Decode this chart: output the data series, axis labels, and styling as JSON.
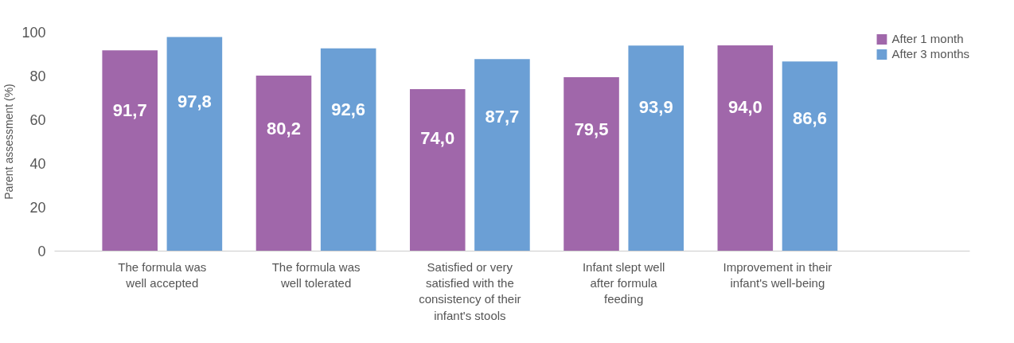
{
  "chart_data": {
    "type": "bar",
    "ylabel": "Parent assessment (%)",
    "categories": [
      "The formula was\nwell accepted",
      "The formula was\nwell tolerated",
      "Satisfied or very\nsatisfied with the\nconsistency of their\ninfant's stools",
      "Infant slept well\nafter formula\nfeeding",
      "Improvement in their\ninfant's well-being"
    ],
    "series": [
      {
        "name": "After 1 month",
        "color": "#a067aa",
        "values": [
          91.7,
          80.2,
          74.0,
          79.5,
          94.0
        ],
        "value_labels": [
          "91,7",
          "80,2",
          "74,0",
          "79,5",
          "94,0"
        ]
      },
      {
        "name": "After 3 months",
        "color": "#6b9fd5",
        "values": [
          97.8,
          92.6,
          87.7,
          93.9,
          86.6
        ],
        "value_labels": [
          "97,8",
          "92,6",
          "87,7",
          "93,9",
          "86,6"
        ]
      }
    ],
    "ylim": [
      0,
      100
    ],
    "yticks": [
      0,
      20,
      40,
      60,
      80,
      100
    ],
    "grid": false,
    "legend": "top right"
  }
}
